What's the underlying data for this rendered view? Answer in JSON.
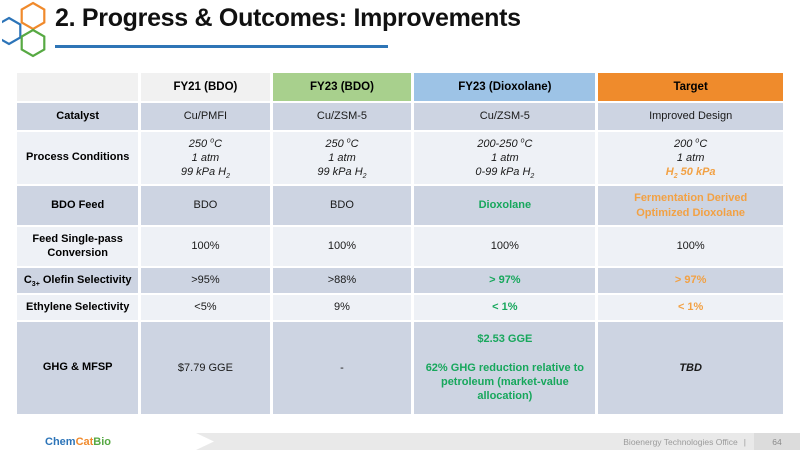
{
  "slide": {
    "title": "2. Progress & Outcomes: Improvements"
  },
  "logo": {
    "description": "three overlapping hexagon outlines",
    "hex_colors": {
      "orange": "#F08A2C",
      "blue": "#2C74B8",
      "green": "#57A943"
    }
  },
  "colors": {
    "title_underline": "#2E75B6",
    "accent_green": "#17A75C",
    "accent_orange": "#F2A144",
    "band_dark": "#CDD4E2",
    "band_light": "#EEF1F6",
    "header_gray": "#F1F1F1",
    "header_green": "#A8D08D",
    "header_blue": "#9DC3E6",
    "header_orange": "#EF8B2C"
  },
  "table": {
    "columns": [
      {
        "key": "row-label",
        "label": "",
        "bg": "#F1F1F1"
      },
      {
        "key": "fy21-bdo",
        "label": "FY21 (BDO)",
        "bg": "#F1F1F1"
      },
      {
        "key": "fy23-bdo",
        "label": "FY23 (BDO)",
        "bg": "#A8D08D"
      },
      {
        "key": "fy23-dioxolane",
        "label": "FY23 (Dioxolane)",
        "bg": "#9DC3E6"
      },
      {
        "key": "target",
        "label": "Target",
        "bg": "#EF8B2C"
      }
    ],
    "rows": [
      {
        "key": "catalyst",
        "label_html": "Catalyst",
        "band": "dark",
        "cells": [
          {
            "html": "Cu/PMFI"
          },
          {
            "html": "Cu/ZSM-5"
          },
          {
            "html": "Cu/ZSM-5"
          },
          {
            "html": "Improved Design"
          }
        ]
      },
      {
        "key": "process-conditions",
        "label_html": "Process Conditions",
        "band": "light",
        "cells": [
          {
            "html": "250 <sup>o</sup>C<br>1 atm<br>99 kPa H<sub>2</sub>",
            "style": "italic"
          },
          {
            "html": "250 <sup>o</sup>C<br>1 atm<br>99 kPa H<sub>2</sub>",
            "style": "italic"
          },
          {
            "html": "200-250 <sup>o</sup>C<br>1 atm<br>0-99 kPa H<sub>2</sub>",
            "style": "italic"
          },
          {
            "html": "200 <sup>o</sup>C<br>1 atm<br><span class='s-orange'>H<sub>2</sub> 50 kPa</span>",
            "style": "italic"
          }
        ]
      },
      {
        "key": "bdo-feed",
        "label_html": "BDO Feed",
        "band": "dark",
        "cells": [
          {
            "html": "BDO"
          },
          {
            "html": "BDO"
          },
          {
            "html": "Dioxolane",
            "style": "green"
          },
          {
            "html": "Fermentation Derived Optimized Dioxolane",
            "style": "orange"
          }
        ]
      },
      {
        "key": "feed-single-pass-conversion",
        "label_html": "Feed Single-pass Conversion",
        "band": "light",
        "cells": [
          {
            "html": "100%"
          },
          {
            "html": "100%"
          },
          {
            "html": "100%"
          },
          {
            "html": "100%"
          }
        ]
      },
      {
        "key": "c3-olefin-selectivity",
        "label_html": "C<sub>3+</sub> Olefin Selectivity",
        "band": "dark",
        "cells": [
          {
            "html": "&gt;95%"
          },
          {
            "html": "&gt;88%"
          },
          {
            "html": "&gt; 97%",
            "style": "green"
          },
          {
            "html": "&gt; 97%",
            "style": "orange"
          }
        ]
      },
      {
        "key": "ethylene-selectivity",
        "label_html": "Ethylene Selectivity",
        "band": "light",
        "cells": [
          {
            "html": "&lt;5%"
          },
          {
            "html": "9%"
          },
          {
            "html": "&lt; 1%",
            "style": "green"
          },
          {
            "html": "&lt; 1%",
            "style": "orange"
          }
        ]
      },
      {
        "key": "ghg-mfsp",
        "label_html": "GHG &amp; MFSP",
        "band": "dark",
        "cells": [
          {
            "html": "$7.79 GGE"
          },
          {
            "html": "-"
          },
          {
            "html": "$2.53 GGE<br><br>62% GHG reduction relative to petroleum (market-value allocation)",
            "style": "green"
          },
          {
            "html": "TBD",
            "style": "tbd"
          }
        ]
      }
    ]
  },
  "footer": {
    "brand": [
      {
        "text": "Chem",
        "color": "#2C74B8"
      },
      {
        "text": "Cat",
        "color": "#F08A2C"
      },
      {
        "text": "Bio",
        "color": "#57A943"
      }
    ],
    "office": "Bioenergy Technologies Office",
    "separator": "|",
    "page_number": "64"
  }
}
